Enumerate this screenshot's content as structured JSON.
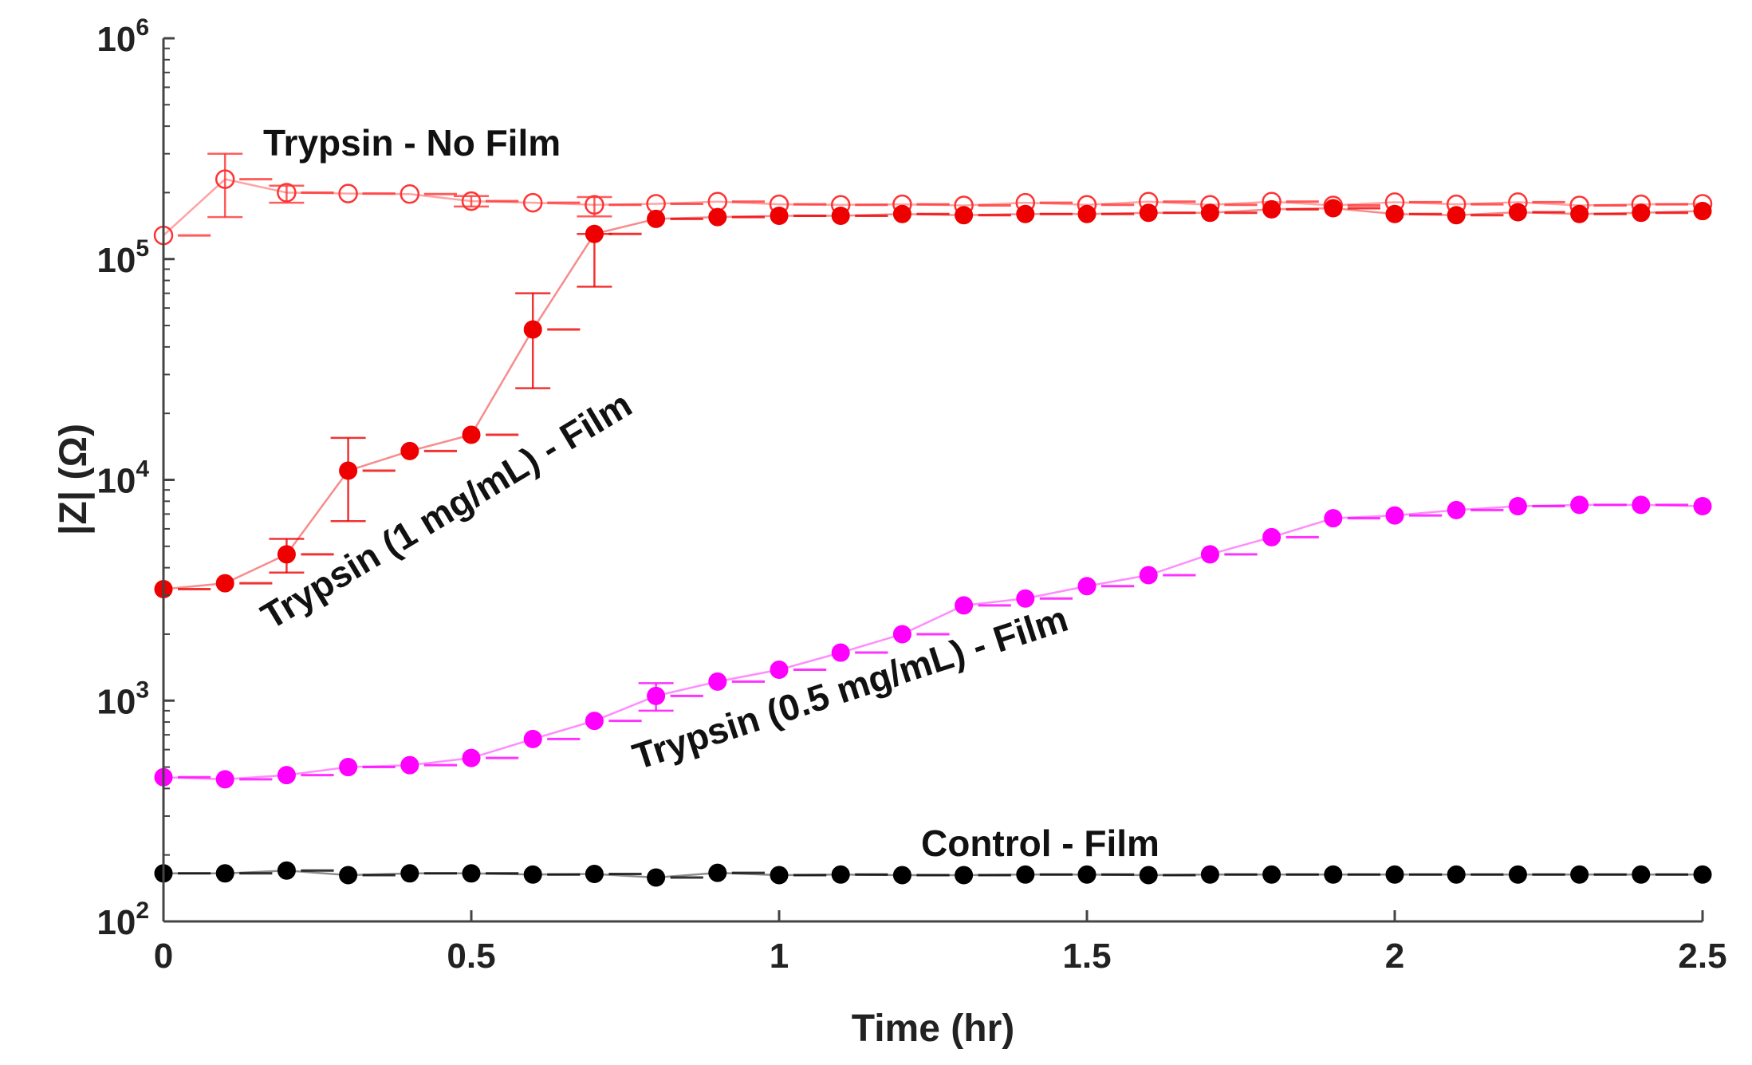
{
  "chart_data": {
    "type": "scatter",
    "title": "",
    "xlabel": "Time (hr)",
    "ylabel": "|Z| (Ω)",
    "xlim": [
      0,
      2.5
    ],
    "ylim": [
      100,
      1000000
    ],
    "yscale": "log",
    "grid": false,
    "x_ticks": [
      0,
      0.5,
      1,
      1.5,
      2,
      2.5
    ],
    "x_tick_labels": [
      "0",
      "0.5",
      "1",
      "1.5",
      "2",
      "2.5"
    ],
    "y_ticks": [
      {
        "value": 100,
        "base": "10",
        "exp": "2"
      },
      {
        "value": 1000,
        "base": "10",
        "exp": "3"
      },
      {
        "value": 10000,
        "base": "10",
        "exp": "4"
      },
      {
        "value": 100000,
        "base": "10",
        "exp": "5"
      },
      {
        "value": 1000000,
        "base": "10",
        "exp": "6"
      }
    ],
    "x": [
      0,
      0.1,
      0.2,
      0.3,
      0.4,
      0.5,
      0.6,
      0.7,
      0.8,
      0.9,
      1.0,
      1.1,
      1.2,
      1.3,
      1.4,
      1.5,
      1.6,
      1.7,
      1.8,
      1.9,
      2.0,
      2.1,
      2.2,
      2.3,
      2.4,
      2.5
    ],
    "series": [
      {
        "name": "Trypsin - No Film",
        "color": "#ff3333",
        "marker": "open-circle",
        "values": [
          128000,
          230000,
          200000,
          198000,
          197000,
          183000,
          180000,
          176000,
          178000,
          182000,
          177000,
          176000,
          177000,
          175000,
          180000,
          176000,
          182000,
          176000,
          182000,
          175000,
          181000,
          177000,
          181000,
          175000,
          177000,
          178000
        ],
        "err_low": [
          0,
          75000,
          20000,
          0,
          0,
          10000,
          0,
          20000,
          0,
          0,
          0,
          0,
          0,
          0,
          0,
          0,
          0,
          0,
          0,
          0,
          0,
          0,
          0,
          0,
          0,
          0
        ],
        "err_high": [
          0,
          70000,
          15000,
          0,
          0,
          10000,
          0,
          15000,
          0,
          0,
          0,
          0,
          0,
          0,
          0,
          0,
          0,
          0,
          0,
          0,
          0,
          0,
          0,
          0,
          0,
          0
        ]
      },
      {
        "name": "Trypsin (1 mg/mL) - Film",
        "color": "#ee0000",
        "marker": "filled-circle",
        "values": [
          3200,
          3400,
          4600,
          11000,
          13500,
          16000,
          48000,
          130000,
          152000,
          155000,
          157000,
          157000,
          160000,
          158000,
          160000,
          160000,
          162000,
          162000,
          168000,
          170000,
          160000,
          158000,
          163000,
          160000,
          162000,
          165000
        ],
        "err_low": [
          0,
          0,
          800,
          4500,
          0,
          0,
          22000,
          55000,
          0,
          0,
          0,
          0,
          0,
          0,
          0,
          0,
          0,
          0,
          0,
          0,
          0,
          0,
          0,
          0,
          0,
          0
        ],
        "err_high": [
          0,
          0,
          800,
          4500,
          0,
          0,
          22000,
          0,
          0,
          0,
          0,
          0,
          0,
          0,
          0,
          0,
          0,
          0,
          0,
          0,
          0,
          0,
          0,
          0,
          0,
          0
        ]
      },
      {
        "name": "Trypsin (0.5 mg/mL) - Film",
        "color": "#ff00ff",
        "marker": "filled-circle",
        "values": [
          450,
          440,
          460,
          500,
          510,
          550,
          670,
          810,
          1050,
          1220,
          1380,
          1650,
          2000,
          2700,
          2900,
          3300,
          3700,
          4600,
          5500,
          6700,
          6900,
          7300,
          7600,
          7700,
          7700,
          7600
        ],
        "err_low": [
          0,
          0,
          0,
          0,
          0,
          0,
          0,
          0,
          150,
          0,
          0,
          0,
          0,
          0,
          0,
          0,
          0,
          0,
          0,
          0,
          0,
          0,
          0,
          0,
          0,
          0
        ],
        "err_high": [
          0,
          0,
          0,
          0,
          0,
          0,
          0,
          0,
          150,
          0,
          0,
          0,
          0,
          0,
          0,
          0,
          0,
          0,
          0,
          0,
          0,
          0,
          0,
          0,
          0,
          0
        ]
      },
      {
        "name": "Control - Film",
        "color": "#000000",
        "marker": "filled-circle",
        "values": [
          165,
          165,
          170,
          162,
          165,
          165,
          163,
          164,
          158,
          166,
          162,
          163,
          162,
          162,
          163,
          163,
          162,
          163,
          163,
          163,
          163,
          163,
          163,
          163,
          163,
          163
        ],
        "err_low": [
          0,
          0,
          0,
          0,
          0,
          0,
          0,
          0,
          0,
          0,
          0,
          0,
          0,
          0,
          0,
          0,
          0,
          0,
          0,
          0,
          0,
          0,
          0,
          0,
          0,
          0
        ],
        "err_high": [
          0,
          0,
          0,
          0,
          0,
          0,
          0,
          0,
          0,
          0,
          0,
          0,
          0,
          0,
          0,
          0,
          0,
          0,
          0,
          0,
          0,
          0,
          0,
          0,
          0,
          0
        ]
      }
    ],
    "annotations": [
      {
        "text": "Trypsin - No Film"
      },
      {
        "text": "Trypsin (1 mg/mL) - Film"
      },
      {
        "text": "Trypsin (0.5 mg/mL) - Film"
      },
      {
        "text": "Control - Film"
      }
    ]
  }
}
